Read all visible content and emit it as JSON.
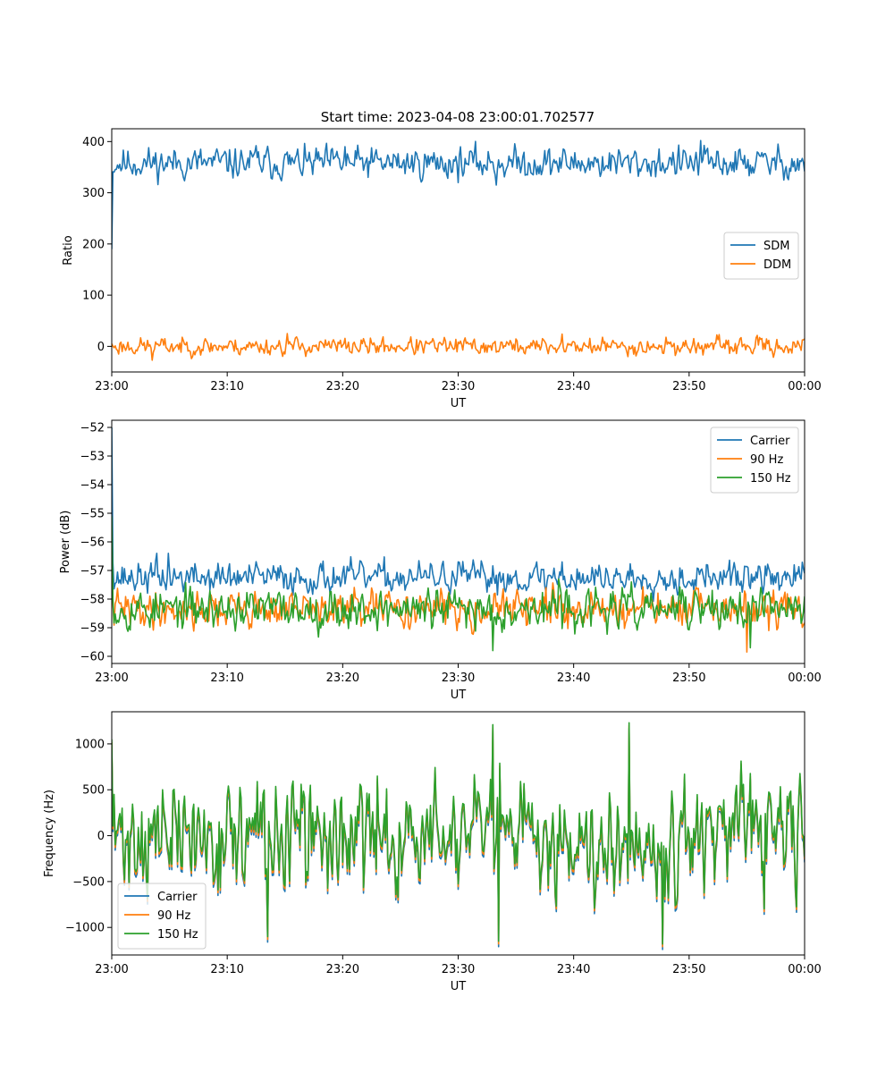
{
  "figure": {
    "title": "Start time: 2023-04-08 23:00:01.702577"
  },
  "chart_data": [
    {
      "type": "line",
      "title": "Start time: 2023-04-08 23:00:01.702577",
      "xlabel": "UT",
      "ylabel": "Ratio",
      "xlim": [
        0,
        60
      ],
      "ylim": [
        -50,
        425
      ],
      "x_ticks": [
        {
          "value": 0,
          "label": "23:00"
        },
        {
          "value": 10,
          "label": "23:10"
        },
        {
          "value": 20,
          "label": "23:20"
        },
        {
          "value": 30,
          "label": "23:30"
        },
        {
          "value": 40,
          "label": "23:40"
        },
        {
          "value": 50,
          "label": "23:50"
        },
        {
          "value": 60,
          "label": "00:00"
        }
      ],
      "y_ticks": [
        {
          "value": 0,
          "label": "0"
        },
        {
          "value": 100,
          "label": "100"
        },
        {
          "value": 200,
          "label": "200"
        },
        {
          "value": 300,
          "label": "300"
        },
        {
          "value": 400,
          "label": "400"
        }
      ],
      "grid": false,
      "legend": "center-right",
      "series": [
        {
          "name": "SDM",
          "color": "#1f77b4",
          "start": [
            0,
            190
          ],
          "mean": 358,
          "amplitude": 22,
          "seed": 11,
          "peaks": [
            [
              12.5,
              392
            ],
            [
              20.2,
              390
            ],
            [
              33.3,
              315
            ],
            [
              51,
              402
            ]
          ]
        },
        {
          "name": "DDM",
          "color": "#ff7f0e",
          "start": [
            0,
            5
          ],
          "mean": 0,
          "amplitude": 12,
          "seed": 23,
          "peaks": [
            [
              3.5,
              -27
            ],
            [
              15.2,
              25
            ],
            [
              39,
              24
            ]
          ]
        }
      ]
    },
    {
      "type": "line",
      "xlabel": "UT",
      "ylabel": "Power (dB)",
      "xlim": [
        0,
        60
      ],
      "ylim": [
        -60.25,
        -51.75
      ],
      "x_ticks": [
        {
          "value": 0,
          "label": "23:00"
        },
        {
          "value": 10,
          "label": "23:10"
        },
        {
          "value": 20,
          "label": "23:20"
        },
        {
          "value": 30,
          "label": "23:30"
        },
        {
          "value": 40,
          "label": "23:40"
        },
        {
          "value": 50,
          "label": "23:50"
        },
        {
          "value": 60,
          "label": "00:00"
        }
      ],
      "y_ticks": [
        {
          "value": -60,
          "label": "−60"
        },
        {
          "value": -59,
          "label": "−59"
        },
        {
          "value": -58,
          "label": "−58"
        },
        {
          "value": -57,
          "label": "−57"
        },
        {
          "value": -56,
          "label": "−56"
        },
        {
          "value": -55,
          "label": "−55"
        },
        {
          "value": -54,
          "label": "−54"
        },
        {
          "value": -53,
          "label": "−53"
        },
        {
          "value": -52,
          "label": "−52"
        }
      ],
      "grid": false,
      "legend": "top-right",
      "series": [
        {
          "name": "Carrier",
          "color": "#1f77b4",
          "start": [
            0,
            -52
          ],
          "mean": -57.25,
          "amplitude": 0.38,
          "seed": 37,
          "peaks": [
            [
              3.9,
              -56.4
            ],
            [
              4.9,
              -56.4
            ],
            [
              30,
              -56.7
            ],
            [
              39,
              -56.7
            ]
          ]
        },
        {
          "name": "90 Hz",
          "color": "#ff7f0e",
          "start": [
            0,
            -56
          ],
          "mean": -58.35,
          "amplitude": 0.45,
          "seed": 41,
          "peaks": [
            [
              55,
              -59.85
            ],
            [
              37.6,
              -57.6
            ]
          ]
        },
        {
          "name": "150 Hz",
          "color": "#2ca02c",
          "start": [
            0,
            -55.1
          ],
          "mean": -58.35,
          "amplitude": 0.5,
          "seed": 53,
          "peaks": [
            [
              33,
              -59.8
            ],
            [
              38.7,
              -57.3
            ],
            [
              55.3,
              -59.7
            ]
          ]
        }
      ]
    },
    {
      "type": "line",
      "xlabel": "UT",
      "ylabel": "Frequency (Hz)",
      "xlim": [
        0,
        60
      ],
      "ylim": [
        -1300,
        1350
      ],
      "x_ticks": [
        {
          "value": 0,
          "label": "23:00"
        },
        {
          "value": 10,
          "label": "23:10"
        },
        {
          "value": 20,
          "label": "23:20"
        },
        {
          "value": 30,
          "label": "23:30"
        },
        {
          "value": 40,
          "label": "23:40"
        },
        {
          "value": 50,
          "label": "23:50"
        },
        {
          "value": 60,
          "label": "00:00"
        }
      ],
      "y_ticks": [
        {
          "value": -1000,
          "label": "−1000"
        },
        {
          "value": -500,
          "label": "−500"
        },
        {
          "value": 0,
          "label": "0"
        },
        {
          "value": 500,
          "label": "500"
        },
        {
          "value": 1000,
          "label": "1000"
        }
      ],
      "grid": false,
      "legend": "bottom-left",
      "shared_signal": {
        "start": [
          0,
          1050
        ],
        "mean": 0,
        "amplitude": 420,
        "seed": 71,
        "peaks": [
          [
            13.5,
            -1100
          ],
          [
            33,
            1210
          ],
          [
            33.5,
            -1150
          ],
          [
            44.8,
            1230
          ],
          [
            47.7,
            -1180
          ]
        ]
      },
      "series": [
        {
          "name": "Carrier",
          "color": "#1f77b4",
          "offset": -60
        },
        {
          "name": "90 Hz",
          "color": "#ff7f0e",
          "offset": -30
        },
        {
          "name": "150 Hz",
          "color": "#2ca02c",
          "offset": 0
        }
      ]
    }
  ]
}
